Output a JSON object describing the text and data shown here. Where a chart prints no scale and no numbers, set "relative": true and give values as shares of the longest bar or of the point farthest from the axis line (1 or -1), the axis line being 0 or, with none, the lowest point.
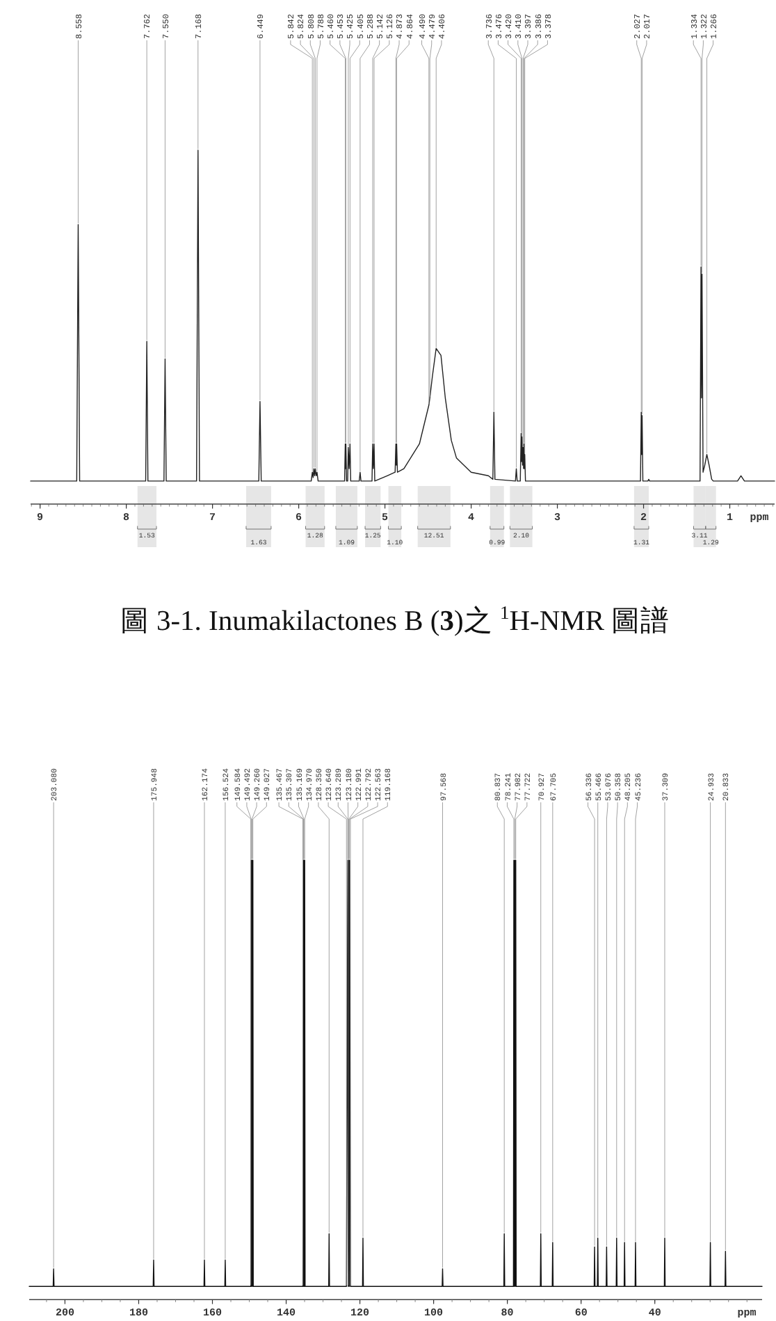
{
  "chart_data": [
    {
      "type": "line",
      "relative": true,
      "color": "#222222",
      "xlabel": "ppm",
      "xlim": [
        9.11,
        0.48
      ],
      "xticks": [
        9,
        8,
        7,
        6,
        5,
        4,
        3,
        2,
        1
      ],
      "x": [
        9.11,
        8.575,
        8.558,
        8.541,
        7.775,
        7.762,
        7.749,
        7.563,
        7.55,
        7.537,
        7.185,
        7.168,
        7.151,
        6.463,
        6.449,
        6.435,
        5.855,
        5.842,
        5.833,
        5.824,
        5.816,
        5.808,
        5.798,
        5.788,
        5.775,
        5.468,
        5.46,
        5.456,
        5.453,
        5.445,
        5.432,
        5.425,
        5.415,
        5.405,
        5.397,
        5.298,
        5.288,
        5.278,
        5.15,
        5.142,
        5.134,
        5.126,
        5.118,
        4.974,
        4.882,
        4.873,
        4.868,
        4.864,
        4.855,
        4.78,
        4.6,
        4.49,
        4.479,
        4.45,
        4.406,
        4.35,
        4.3,
        4.23,
        4.17,
        4.0,
        3.8,
        3.748,
        3.736,
        3.724,
        3.486,
        3.476,
        3.466,
        3.43,
        3.42,
        3.415,
        3.41,
        3.404,
        3.397,
        3.392,
        3.386,
        3.382,
        3.378,
        3.37,
        2.036,
        2.027,
        2.022,
        2.017,
        2.008,
        1.95,
        1.94,
        1.93,
        1.345,
        1.334,
        1.328,
        1.322,
        1.31,
        1.29,
        1.266,
        1.24,
        1.21,
        1.19,
        0.91,
        0.87,
        0.83,
        0.48
      ],
      "values": [
        0.065,
        0.065,
        0.79,
        0.065,
        0.065,
        0.46,
        0.065,
        0.065,
        0.41,
        0.065,
        0.065,
        1,
        0.065,
        0.065,
        0.29,
        0.065,
        0.065,
        0.09,
        0.075,
        0.1,
        0.08,
        0.1,
        0.08,
        0.09,
        0.065,
        0.065,
        0.17,
        0.1,
        0.17,
        0.065,
        0.065,
        0.16,
        0.1,
        0.17,
        0.065,
        0.065,
        0.09,
        0.065,
        0.065,
        0.17,
        0.1,
        0.17,
        0.065,
        0.08,
        0.09,
        0.17,
        0.11,
        0.17,
        0.09,
        0.1,
        0.17,
        0.28,
        0.3,
        0.36,
        0.44,
        0.42,
        0.3,
        0.18,
        0.13,
        0.09,
        0.08,
        0.07,
        0.26,
        0.07,
        0.065,
        0.1,
        0.065,
        0.065,
        0.2,
        0.12,
        0.19,
        0.11,
        0.16,
        0.1,
        0.17,
        0.1,
        0.14,
        0.065,
        0.065,
        0.26,
        0.14,
        0.25,
        0.065,
        0.065,
        0.07,
        0.065,
        0.065,
        0.67,
        0.3,
        0.65,
        0.09,
        0.11,
        0.14,
        0.11,
        0.07,
        0.065,
        0.065,
        0.08,
        0.065,
        0.065
      ],
      "bands": [
        {
          "axis": "x",
          "from": 7.87,
          "to": 7.65,
          "label": "1.53"
        },
        {
          "axis": "x",
          "from": 6.61,
          "to": 6.32,
          "label": "1.63"
        },
        {
          "axis": "x",
          "from": 5.92,
          "to": 5.7,
          "label": "1.28"
        },
        {
          "axis": "x",
          "from": 5.57,
          "to": 5.32,
          "label": "1.09"
        },
        {
          "axis": "x",
          "from": 5.23,
          "to": 5.05,
          "label": "1.25"
        },
        {
          "axis": "x",
          "from": 4.96,
          "to": 4.81,
          "label": "1.10"
        },
        {
          "axis": "x",
          "from": 4.62,
          "to": 4.24,
          "label": "12.51"
        },
        {
          "axis": "x",
          "from": 3.78,
          "to": 3.62,
          "label": "0.99"
        },
        {
          "axis": "x",
          "from": 3.55,
          "to": 3.29,
          "label": "2.10"
        },
        {
          "axis": "x",
          "from": 2.11,
          "to": 1.94,
          "label": "1.31"
        },
        {
          "axis": "x",
          "from": 1.42,
          "to": 1.28,
          "label": "3.11"
        },
        {
          "axis": "x",
          "from": 1.28,
          "to": 1.16,
          "label": "1.29"
        }
      ],
      "annotations": [
        {
          "text": "8.558",
          "x": 8.558,
          "y": 0.79
        },
        {
          "text": "7.762",
          "x": 7.762,
          "y": 0.46
        },
        {
          "text": "7.550",
          "x": 7.55,
          "y": 0.41
        },
        {
          "text": "7.168",
          "x": 7.168,
          "y": 1
        },
        {
          "text": "6.449",
          "x": 6.449,
          "y": 0.29
        },
        {
          "text": "5.842",
          "x": 5.842,
          "y": 0.09
        },
        {
          "text": "5.824",
          "x": 5.824,
          "y": 0.1
        },
        {
          "text": "5.808",
          "x": 5.808,
          "y": 0.1
        },
        {
          "text": "5.788",
          "x": 5.788,
          "y": 0.09
        },
        {
          "text": "5.460",
          "x": 5.46,
          "y": 0.17
        },
        {
          "text": "5.453",
          "x": 5.453,
          "y": 0.17
        },
        {
          "text": "5.425",
          "x": 5.425,
          "y": 0.16
        },
        {
          "text": "5.405",
          "x": 5.405,
          "y": 0.17
        },
        {
          "text": "5.288",
          "x": 5.288,
          "y": 0.09
        },
        {
          "text": "5.142",
          "x": 5.142,
          "y": 0.17
        },
        {
          "text": "5.126",
          "x": 5.126,
          "y": 0.17
        },
        {
          "text": "4.873",
          "x": 4.873,
          "y": 0.17
        },
        {
          "text": "4.864",
          "x": 4.864,
          "y": 0.17
        },
        {
          "text": "4.490",
          "x": 4.49,
          "y": 0.28
        },
        {
          "text": "4.479",
          "x": 4.479,
          "y": 0.3
        },
        {
          "text": "4.406",
          "x": 4.406,
          "y": 0.44
        },
        {
          "text": "3.736",
          "x": 3.736,
          "y": 0.26
        },
        {
          "text": "3.476",
          "x": 3.476,
          "y": 0.1
        },
        {
          "text": "3.420",
          "x": 3.42,
          "y": 0.2
        },
        {
          "text": "3.410",
          "x": 3.41,
          "y": 0.19
        },
        {
          "text": "3.397",
          "x": 3.397,
          "y": 0.16
        },
        {
          "text": "3.386",
          "x": 3.386,
          "y": 0.17
        },
        {
          "text": "3.378",
          "x": 3.378,
          "y": 0.14
        },
        {
          "text": "2.027",
          "x": 2.027,
          "y": 0.26
        },
        {
          "text": "2.017",
          "x": 2.017,
          "y": 0.25
        },
        {
          "text": "1.334",
          "x": 1.334,
          "y": 0.67
        },
        {
          "text": "1.322",
          "x": 1.322,
          "y": 0.65
        },
        {
          "text": "1.266",
          "x": 1.266,
          "y": 0.14
        },
        "圖 3-1. Inumakilactones B (**3**)之 $^{1}$H-NMR 圖譜"
      ]
    },
    {
      "type": "line",
      "relative": true,
      "color": "#111111",
      "xlabel": "ppm",
      "xlim": [
        209.7,
        10.9
      ],
      "xticks": [
        200,
        180,
        160,
        140,
        120,
        100,
        80,
        60,
        40
      ],
      "x": [
        209.7,
        203.2,
        203.08,
        202.96,
        176.07,
        175.948,
        175.83,
        162.29,
        162.174,
        162.06,
        156.64,
        156.524,
        156.41,
        149.584,
        149.492,
        149.376,
        149.26,
        149.143,
        149.027,
        148.92,
        135.467,
        135.307,
        135.238,
        135.169,
        135.07,
        134.97,
        134.86,
        128.46,
        128.35,
        128.24,
        123.64,
        123.289,
        123.18,
        122.991,
        122.89,
        122.792,
        122.563,
        119.28,
        119.168,
        119.05,
        97.68,
        97.568,
        97.45,
        80.95,
        80.837,
        80.72,
        78.35,
        78.241,
        78.11,
        77.982,
        77.85,
        77.722,
        77.61,
        71.04,
        70.927,
        70.81,
        67.82,
        67.705,
        67.59,
        56.45,
        56.336,
        56.22,
        55.58,
        55.466,
        55.35,
        53.19,
        53.076,
        52.96,
        50.47,
        50.358,
        50.24,
        48.32,
        48.205,
        48.09,
        45.35,
        45.236,
        45.12,
        37.42,
        37.309,
        37.2,
        25.05,
        24.933,
        24.82,
        20.95,
        20.833,
        20.72,
        10.9
      ],
      "values": [
        0.03,
        0.03,
        0.07,
        0.03,
        0.03,
        0.09,
        0.03,
        0.03,
        0.09,
        0.03,
        0.03,
        0.09,
        0.03,
        0.03,
        1,
        0.03,
        1,
        0.03,
        1,
        0.03,
        0.03,
        1,
        0.03,
        1,
        0.03,
        1,
        0.03,
        0.03,
        0.15,
        0.03,
        0.03,
        1,
        0.03,
        1,
        0.03,
        1,
        0.03,
        0.03,
        0.14,
        0.03,
        0.03,
        0.07,
        0.03,
        0.03,
        0.15,
        0.03,
        0.03,
        1,
        0.03,
        1,
        0.03,
        1,
        0.03,
        0.03,
        0.15,
        0.03,
        0.03,
        0.13,
        0.03,
        0.03,
        0.12,
        0.03,
        0.03,
        0.14,
        0.03,
        0.03,
        0.12,
        0.03,
        0.03,
        0.14,
        0.03,
        0.03,
        0.13,
        0.03,
        0.03,
        0.13,
        0.03,
        0.03,
        0.14,
        0.03,
        0.03,
        0.13,
        0.03,
        0.03,
        0.11,
        0.03,
        0.03
      ],
      "annotations": [
        {
          "text": "203.080",
          "x": 203.08,
          "y": 0.07
        },
        {
          "text": "175.948",
          "x": 175.948,
          "y": 0.09
        },
        {
          "text": "162.174",
          "x": 162.174,
          "y": 0.09
        },
        {
          "text": "156.524",
          "x": 156.524,
          "y": 0.09
        },
        {
          "text": "149.584",
          "x": 149.584,
          "y": 0.03
        },
        {
          "text": "149.492",
          "x": 149.492,
          "y": 1
        },
        {
          "text": "149.260",
          "x": 149.26,
          "y": 1
        },
        {
          "text": "149.027",
          "x": 149.027,
          "y": 1
        },
        {
          "text": "135.467",
          "x": 135.467,
          "y": 0.03
        },
        {
          "text": "135.307",
          "x": 135.307,
          "y": 1
        },
        {
          "text": "135.169",
          "x": 135.169,
          "y": 1
        },
        {
          "text": "134.970",
          "x": 134.97,
          "y": 1
        },
        {
          "text": "128.350",
          "x": 128.35,
          "y": 0.15
        },
        {
          "text": "123.640",
          "x": 123.64,
          "y": 0.03
        },
        {
          "text": "123.289",
          "x": 123.289,
          "y": 1
        },
        {
          "text": "123.180",
          "x": 123.18,
          "y": 0.03
        },
        {
          "text": "122.991",
          "x": 122.991,
          "y": 1
        },
        {
          "text": "122.792",
          "x": 122.792,
          "y": 1
        },
        {
          "text": "122.563",
          "x": 122.563,
          "y": 0.03
        },
        {
          "text": "119.168",
          "x": 119.168,
          "y": 0.14
        },
        {
          "text": "97.568",
          "x": 97.568,
          "y": 0.07
        },
        {
          "text": "80.837",
          "x": 80.837,
          "y": 0.15
        },
        {
          "text": "78.241",
          "x": 78.241,
          "y": 1
        },
        {
          "text": "77.982",
          "x": 77.982,
          "y": 1
        },
        {
          "text": "77.722",
          "x": 77.722,
          "y": 1
        },
        {
          "text": "70.927",
          "x": 70.927,
          "y": 0.15
        },
        {
          "text": "67.705",
          "x": 67.705,
          "y": 0.13
        },
        {
          "text": "56.336",
          "x": 56.336,
          "y": 0.12
        },
        {
          "text": "55.466",
          "x": 55.466,
          "y": 0.14
        },
        {
          "text": "53.076",
          "x": 53.076,
          "y": 0.12
        },
        {
          "text": "50.358",
          "x": 50.358,
          "y": 0.14
        },
        {
          "text": "48.205",
          "x": 48.205,
          "y": 0.13
        },
        {
          "text": "45.236",
          "x": 45.236,
          "y": 0.13
        },
        {
          "text": "37.309",
          "x": 37.309,
          "y": 0.14
        },
        {
          "text": "24.933",
          "x": 24.933,
          "y": 0.13
        },
        {
          "text": "20.833",
          "x": 20.833,
          "y": 0.11
        }
      ]
    }
  ]
}
